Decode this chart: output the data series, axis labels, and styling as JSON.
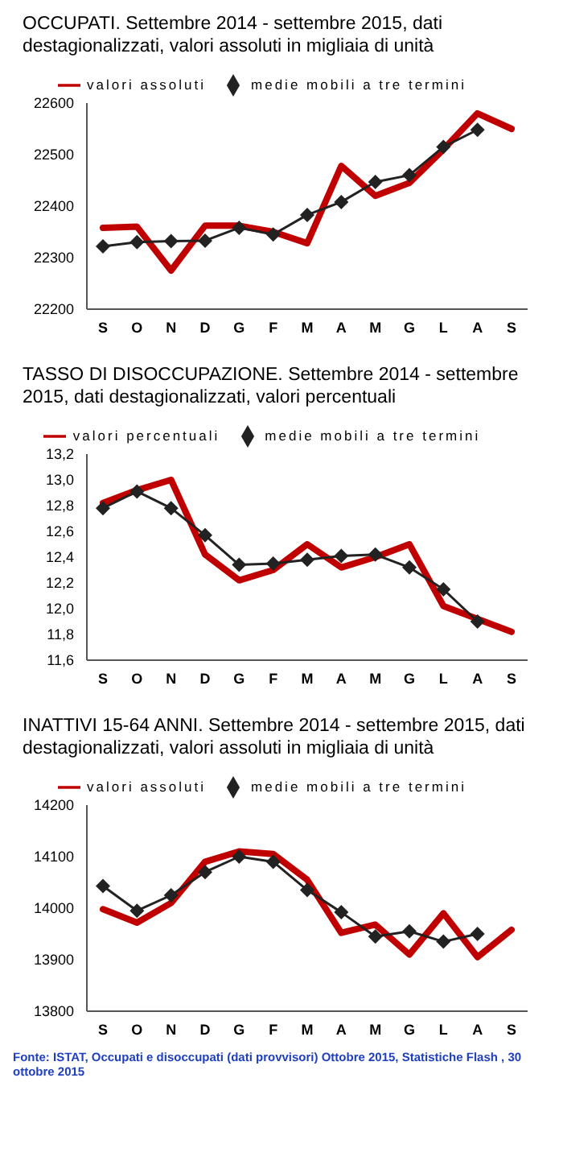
{
  "chart_data": [
    {
      "type": "line",
      "title": "OCCUPATI. Settembre 2014 - settembre 2015, dati destagionalizzati, valori assoluti in migliaia di unità",
      "categories": [
        "S",
        "O",
        "N",
        "D",
        "G",
        "F",
        "M",
        "A",
        "M",
        "G",
        "L",
        "A",
        "S"
      ],
      "series": [
        {
          "name": "valori assoluti",
          "color": "#c00000",
          "marker": "none",
          "values": [
            22358,
            22360,
            22275,
            22362,
            22362,
            22350,
            22328,
            22478,
            22420,
            22445,
            22510,
            22580,
            22550
          ]
        },
        {
          "name": "medie mobili a tre termini",
          "color": "#222222",
          "marker": "diamond",
          "values": [
            22322,
            22330,
            22332,
            22333,
            22358,
            22345,
            22383,
            22408,
            22447,
            22460,
            22515,
            22548,
            null
          ]
        }
      ],
      "ylim": [
        22200,
        22600
      ],
      "yticks": [
        22200,
        22300,
        22400,
        22500,
        22600
      ],
      "grid": false,
      "legend": "top"
    },
    {
      "type": "line",
      "title": "TASSO DI DISOCCUPAZIONE. Settembre 2014 - settembre 2015, dati destagionalizzati, valori percentuali",
      "categories": [
        "S",
        "O",
        "N",
        "D",
        "G",
        "F",
        "M",
        "A",
        "M",
        "G",
        "L",
        "A",
        "S"
      ],
      "series": [
        {
          "name": "valori percentuali",
          "color": "#c00000",
          "marker": "none",
          "values": [
            12.82,
            12.92,
            13.0,
            12.42,
            12.22,
            12.3,
            12.5,
            12.32,
            12.4,
            12.5,
            12.02,
            11.92,
            11.82
          ]
        },
        {
          "name": "medie mobili a tre termini",
          "color": "#222222",
          "marker": "diamond",
          "values": [
            12.78,
            12.91,
            12.78,
            12.57,
            12.34,
            12.35,
            12.38,
            12.41,
            12.42,
            12.32,
            12.15,
            11.9,
            null
          ]
        }
      ],
      "ylim": [
        11.6,
        13.2
      ],
      "yticks": [
        {
          "value": 11.6,
          "label": "11,6"
        },
        {
          "value": 11.8,
          "label": "11,8"
        },
        {
          "value": 12.0,
          "label": "12,0"
        },
        {
          "value": 12.2,
          "label": "12,2"
        },
        {
          "value": 12.4,
          "label": "12,4"
        },
        {
          "value": 12.6,
          "label": "12,6"
        },
        {
          "value": 12.8,
          "label": "12,8"
        },
        {
          "value": 13.0,
          "label": "13,0"
        },
        {
          "value": 13.2,
          "label": "13,2"
        }
      ],
      "grid": false,
      "legend": "top"
    },
    {
      "type": "line",
      "title": "INATTIVI 15-64 ANNI. Settembre 2014 - settembre 2015, dati destagionalizzati, valori assoluti in migliaia di unità",
      "categories": [
        "S",
        "O",
        "N",
        "D",
        "G",
        "F",
        "M",
        "A",
        "M",
        "G",
        "L",
        "A",
        "S"
      ],
      "series": [
        {
          "name": "valori assoluti",
          "color": "#c00000",
          "marker": "none",
          "values": [
            13998,
            13972,
            14010,
            14090,
            14110,
            14105,
            14055,
            13952,
            13968,
            13910,
            13990,
            13905,
            13958
          ]
        },
        {
          "name": "medie mobili a tre termini",
          "color": "#222222",
          "marker": "diamond",
          "values": [
            14043,
            13995,
            14025,
            14070,
            14100,
            14090,
            14035,
            13992,
            13945,
            13955,
            13935,
            13950,
            null
          ]
        }
      ],
      "ylim": [
        13800,
        14200
      ],
      "yticks": [
        13800,
        13900,
        14000,
        14100,
        14200
      ],
      "grid": false,
      "legend": "top",
      "annotations": [
        "Fonte: ISTAT, Occupati e disoccupati (dati provvisori) Ottobre 2015, Statistiche Flash , 30 ottobre 2015"
      ]
    }
  ]
}
